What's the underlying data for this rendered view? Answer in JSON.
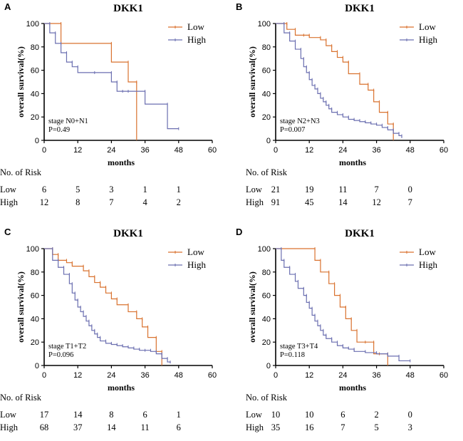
{
  "colors": {
    "low": "#d9722f",
    "high": "#6b6fb0",
    "axis": "#000000"
  },
  "chart_data": [
    {
      "type": "line",
      "panel_label": "A",
      "title": "DKK1",
      "xlabel": "months",
      "ylabel": "overall survival(%)",
      "xlim": [
        0,
        60
      ],
      "ylim": [
        0,
        100
      ],
      "xticks": [
        0,
        12,
        24,
        36,
        48,
        60
      ],
      "yticks": [
        0,
        20,
        40,
        60,
        80,
        100
      ],
      "annotation": [
        "stage N0+N1",
        "P=0.49"
      ],
      "series": [
        {
          "name": "Low",
          "x": [
            0,
            6,
            24,
            30,
            33
          ],
          "y": [
            100,
            83,
            67,
            50,
            0
          ]
        },
        {
          "name": "High",
          "x": [
            0,
            2,
            4,
            6,
            8,
            10,
            12,
            18,
            24,
            26,
            28,
            30,
            36,
            44,
            48
          ],
          "y": [
            100,
            92,
            83,
            75,
            67,
            63,
            58,
            58,
            50,
            42,
            42,
            42,
            31,
            10,
            10
          ]
        }
      ],
      "risk_table": {
        "header": "No. of Risk",
        "rows": [
          {
            "label": "Low",
            "values": [
              "6",
              "5",
              "3",
              "1",
              "1"
            ]
          },
          {
            "label": "High",
            "values": [
              "12",
              "8",
              "7",
              "4",
              "2"
            ]
          }
        ]
      }
    },
    {
      "type": "line",
      "panel_label": "B",
      "title": "DKK1",
      "xlabel": "months",
      "ylabel": "overall survival(%)",
      "xlim": [
        0,
        60
      ],
      "ylim": [
        0,
        100
      ],
      "xticks": [
        0,
        12,
        24,
        36,
        48,
        60
      ],
      "yticks": [
        0,
        20,
        40,
        60,
        80,
        100
      ],
      "annotation": [
        "stage N2+N3",
        "P=0.007"
      ],
      "series": [
        {
          "name": "Low",
          "x": [
            0,
            4,
            7,
            10,
            12,
            16,
            18,
            20,
            22,
            24,
            26,
            30,
            33,
            35,
            37,
            40,
            42
          ],
          "y": [
            100,
            95,
            90,
            90,
            88,
            86,
            81,
            76,
            71,
            67,
            57,
            48,
            43,
            33,
            24,
            14,
            0
          ]
        },
        {
          "name": "High",
          "x": [
            0,
            3,
            5,
            7,
            9,
            10,
            11,
            12,
            13,
            14,
            15,
            16,
            17,
            18,
            19,
            20,
            22,
            24,
            26,
            28,
            30,
            32,
            34,
            36,
            38,
            40,
            42,
            44,
            45
          ],
          "y": [
            100,
            92,
            85,
            78,
            70,
            63,
            58,
            52,
            47,
            44,
            40,
            36,
            33,
            30,
            27,
            24,
            22,
            20,
            18,
            17,
            16,
            15,
            14,
            13,
            11,
            9,
            6,
            4,
            2
          ]
        }
      ],
      "risk_table": {
        "header": "No. of Risk",
        "rows": [
          {
            "label": "Low",
            "values": [
              "21",
              "19",
              "11",
              "7",
              "0"
            ]
          },
          {
            "label": "High",
            "values": [
              "91",
              "45",
              "14",
              "12",
              "7"
            ]
          }
        ]
      }
    },
    {
      "type": "line",
      "panel_label": "C",
      "title": "DKK1",
      "xlabel": "months",
      "ylabel": "overall survival(%)",
      "xlim": [
        0,
        60
      ],
      "ylim": [
        0,
        100
      ],
      "xticks": [
        0,
        12,
        24,
        36,
        48,
        60
      ],
      "yticks": [
        0,
        20,
        40,
        60,
        80,
        100
      ],
      "annotation": [
        "stage T1+T2",
        "P=0.096"
      ],
      "series": [
        {
          "name": "Low",
          "x": [
            0,
            3,
            5,
            8,
            10,
            14,
            16,
            18,
            20,
            22,
            24,
            26,
            30,
            33,
            35,
            37,
            40,
            42
          ],
          "y": [
            100,
            95,
            90,
            88,
            85,
            81,
            76,
            71,
            67,
            62,
            57,
            52,
            46,
            40,
            33,
            24,
            12,
            0
          ]
        },
        {
          "name": "High",
          "x": [
            0,
            3,
            5,
            7,
            9,
            10,
            11,
            12,
            13,
            14,
            15,
            16,
            17,
            18,
            19,
            20,
            22,
            24,
            26,
            28,
            30,
            32,
            34,
            36,
            38,
            40,
            42,
            44,
            45
          ],
          "y": [
            100,
            90,
            84,
            78,
            70,
            62,
            56,
            50,
            46,
            42,
            38,
            34,
            30,
            27,
            24,
            21,
            19,
            18,
            17,
            16,
            15,
            14,
            13,
            13,
            12,
            10,
            6,
            3,
            2
          ]
        }
      ],
      "risk_table": {
        "header": "No. of Risk",
        "rows": [
          {
            "label": "Low",
            "values": [
              "17",
              "14",
              "8",
              "6",
              "1"
            ]
          },
          {
            "label": "High",
            "values": [
              "68",
              "37",
              "14",
              "11",
              "6"
            ]
          }
        ]
      }
    },
    {
      "type": "line",
      "panel_label": "D",
      "title": "DKK1",
      "xlabel": "months",
      "ylabel": "overall survival(%)",
      "xlim": [
        0,
        60
      ],
      "ylim": [
        0,
        100
      ],
      "xticks": [
        0,
        12,
        24,
        36,
        48,
        60
      ],
      "yticks": [
        0,
        20,
        40,
        60,
        80,
        100
      ],
      "annotation": [
        "stage T3+T4",
        "P=0.118"
      ],
      "series": [
        {
          "name": "Low",
          "x": [
            0,
            14,
            16,
            19,
            21,
            23,
            25,
            27,
            29,
            32,
            35,
            37,
            40
          ],
          "y": [
            100,
            90,
            80,
            70,
            60,
            50,
            40,
            30,
            20,
            20,
            10,
            10,
            0
          ]
        },
        {
          "name": "High",
          "x": [
            0,
            2,
            3,
            5,
            7,
            8,
            10,
            11,
            12,
            13,
            14,
            15,
            16,
            17,
            18,
            20,
            22,
            24,
            26,
            28,
            32,
            36,
            40,
            44,
            48
          ],
          "y": [
            100,
            90,
            84,
            78,
            72,
            66,
            60,
            54,
            49,
            43,
            38,
            34,
            30,
            26,
            23,
            20,
            17,
            15,
            14,
            12,
            11,
            10,
            8,
            4,
            4
          ]
        }
      ],
      "risk_table": {
        "header": "No. of Risk",
        "rows": [
          {
            "label": "Low",
            "values": [
              "10",
              "10",
              "6",
              "2",
              "0"
            ]
          },
          {
            "label": "High",
            "values": [
              "35",
              "16",
              "7",
              "5",
              "3"
            ]
          }
        ]
      }
    }
  ]
}
